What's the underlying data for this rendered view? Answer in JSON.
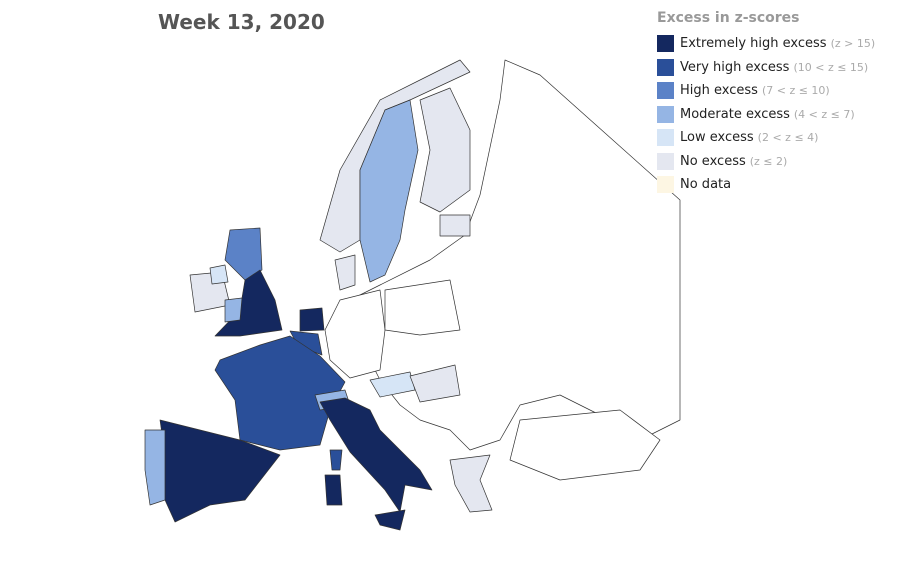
{
  "title": "Week 13, 2020",
  "legend": {
    "title": "Excess in z-scores",
    "items": [
      {
        "label": "Extremely high excess",
        "range": "(z > 15)",
        "color": "#14285f"
      },
      {
        "label": "Very high excess",
        "range": "(10 < z ≤ 15)",
        "color": "#2a4f99"
      },
      {
        "label": "High excess",
        "range": "(7 < z ≤ 10)",
        "color": "#5b82c7"
      },
      {
        "label": "Moderate excess",
        "range": "(4 < z ≤ 7)",
        "color": "#95b5e4"
      },
      {
        "label": "Low excess",
        "range": "(2 < z ≤ 4)",
        "color": "#d6e5f6"
      },
      {
        "label": "No excess",
        "range": "(z ≤ 2)",
        "color": "#e4e7f0"
      },
      {
        "label": "No data",
        "color": "#fdf6e3"
      }
    ]
  }
}
